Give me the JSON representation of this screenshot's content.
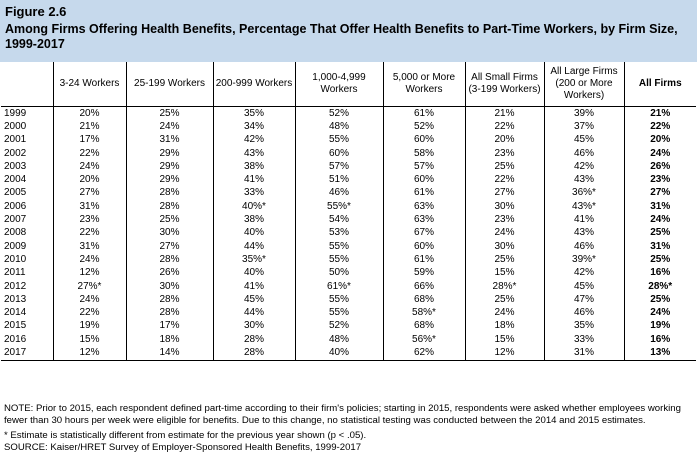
{
  "figure": {
    "label": "Figure 2.6",
    "title": "Among Firms Offering Health Benefits, Percentage That Offer Health Benefits to Part-Time Workers, by Firm Size, 1999-2017"
  },
  "table": {
    "columns": [
      "",
      "3-24 Workers",
      "25-199 Workers",
      "200-999 Workers",
      "1,000-4,999 Workers",
      "5,000 or More Workers",
      "All Small Firms (3-199 Workers)",
      "All Large Firms (200 or More Workers)",
      "All Firms"
    ],
    "rows": [
      [
        "1999",
        "20%",
        "25%",
        "35%",
        "52%",
        "61%",
        "21%",
        "39%",
        "21%"
      ],
      [
        "2000",
        "21%",
        "24%",
        "34%",
        "48%",
        "52%",
        "22%",
        "37%",
        "22%"
      ],
      [
        "2001",
        "17%",
        "31%",
        "42%",
        "55%",
        "60%",
        "20%",
        "45%",
        "20%"
      ],
      [
        "2002",
        "22%",
        "29%",
        "43%",
        "60%",
        "58%",
        "23%",
        "46%",
        "24%"
      ],
      [
        "2003",
        "24%",
        "29%",
        "38%",
        "57%",
        "57%",
        "25%",
        "42%",
        "26%"
      ],
      [
        "2004",
        "20%",
        "29%",
        "41%",
        "51%",
        "60%",
        "22%",
        "43%",
        "23%"
      ],
      [
        "2005",
        "27%",
        "28%",
        "33%",
        "46%",
        "61%",
        "27%",
        "36%*",
        "27%"
      ],
      [
        "2006",
        "31%",
        "28%",
        "40%*",
        "55%*",
        "63%",
        "30%",
        "43%*",
        "31%"
      ],
      [
        "2007",
        "23%",
        "25%",
        "38%",
        "54%",
        "63%",
        "23%",
        "41%",
        "24%"
      ],
      [
        "2008",
        "22%",
        "30%",
        "40%",
        "53%",
        "67%",
        "24%",
        "43%",
        "25%"
      ],
      [
        "2009",
        "31%",
        "27%",
        "44%",
        "55%",
        "60%",
        "30%",
        "46%",
        "31%"
      ],
      [
        "2010",
        "24%",
        "28%",
        "35%*",
        "55%",
        "61%",
        "25%",
        "39%*",
        "25%"
      ],
      [
        "2011",
        "12%",
        "26%",
        "40%",
        "50%",
        "59%",
        "15%",
        "42%",
        "16%"
      ],
      [
        "2012",
        "27%*",
        "30%",
        "41%",
        "61%*",
        "66%",
        "28%*",
        "45%",
        "28%*"
      ],
      [
        "2013",
        "24%",
        "28%",
        "45%",
        "55%",
        "68%",
        "25%",
        "47%",
        "25%"
      ],
      [
        "2014",
        "22%",
        "28%",
        "44%",
        "55%",
        "58%*",
        "24%",
        "46%",
        "24%"
      ],
      [
        "2015",
        "19%",
        "17%",
        "30%",
        "52%",
        "68%",
        "18%",
        "35%",
        "19%"
      ],
      [
        "2016",
        "15%",
        "18%",
        "28%",
        "48%",
        "56%*",
        "15%",
        "33%",
        "16%"
      ],
      [
        "2017",
        "12%",
        "14%",
        "28%",
        "40%",
        "62%",
        "12%",
        "31%",
        "13%"
      ]
    ]
  },
  "notes": {
    "note": "NOTE: Prior to 2015, each respondent defined part-time according to their firm's policies; starting in 2015, respondents were asked whether employees working fewer than 30 hours per week were eligible for benefits. Due to this change, no statistical testing was conducted between the 2014 and 2015 estimates.",
    "asterisk": "* Estimate is statistically different from estimate for the previous year shown (p < .05).",
    "source": "SOURCE: Kaiser/HRET Survey of Employer-Sponsored Health Benefits, 1999-2017"
  },
  "colors": {
    "header_background": "#c6d9ec",
    "rule": "#000000"
  }
}
